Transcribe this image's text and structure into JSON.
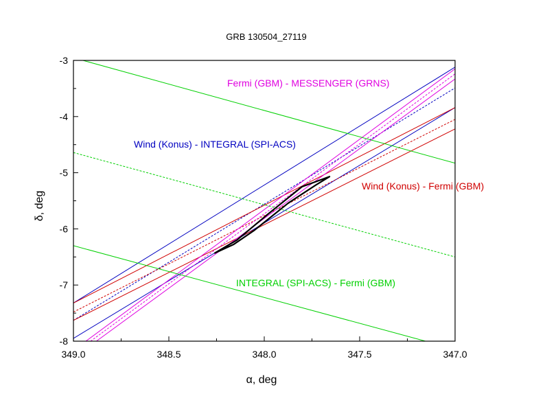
{
  "chart_data": {
    "type": "line",
    "title": "GRB 130504_27119",
    "xlabel": "α, deg",
    "ylabel": "δ, deg",
    "xlim": [
      349.0,
      347.0
    ],
    "ylim": [
      -8,
      -3
    ],
    "x_reversed": true,
    "grid": false,
    "xticks": [
      349.0,
      348.5,
      348.0,
      347.5,
      347.0
    ],
    "xtick_labels": [
      "349.0",
      "348.5",
      "348.0",
      "347.5",
      "347.0"
    ],
    "yticks": [
      -3,
      -4,
      -5,
      -6,
      -7,
      -8
    ],
    "ytick_labels": [
      "-3",
      "-4",
      "-5",
      "-6",
      "-7",
      "-8"
    ],
    "colors": {
      "blue": "#0000c0",
      "red": "#d00000",
      "magenta": "#e000e0",
      "green": "#00d000",
      "black": "#000000"
    },
    "series": [
      {
        "name": "Wind (Konus) - INTEGRAL (SPI-ACS) upper",
        "color": "blue",
        "style": "solid",
        "x": [
          349.0,
          347.0
        ],
        "y": [
          -7.32,
          -3.12
        ]
      },
      {
        "name": "Wind (Konus) - INTEGRAL (SPI-ACS) center",
        "color": "blue",
        "style": "dashed",
        "x": [
          349.0,
          347.0
        ],
        "y": [
          -7.63,
          -3.49
        ]
      },
      {
        "name": "Wind (Konus) - INTEGRAL (SPI-ACS) lower",
        "color": "blue",
        "style": "solid",
        "x": [
          349.0,
          347.0
        ],
        "y": [
          -7.95,
          -3.84
        ]
      },
      {
        "name": "Wind (Konus) - Fermi (GBM) upper",
        "color": "red",
        "style": "solid",
        "x": [
          349.0,
          347.0
        ],
        "y": [
          -7.32,
          -3.84
        ]
      },
      {
        "name": "Wind (Konus) - Fermi (GBM) center",
        "color": "red",
        "style": "dashed",
        "x": [
          349.0,
          347.0
        ],
        "y": [
          -7.48,
          -4.05
        ]
      },
      {
        "name": "Wind (Konus) - Fermi (GBM) lower",
        "color": "red",
        "style": "solid",
        "x": [
          349.0,
          347.0
        ],
        "y": [
          -7.63,
          -4.22
        ]
      },
      {
        "name": "Fermi (GBM) - MESSENGER (GRNS) upper",
        "color": "magenta",
        "style": "solid",
        "x": [
          348.935,
          347.0
        ],
        "y": [
          -8.0,
          -3.15
        ]
      },
      {
        "name": "Fermi (GBM) - MESSENGER (GRNS) center",
        "color": "magenta",
        "style": "dashed",
        "x": [
          348.91,
          347.0
        ],
        "y": [
          -8.0,
          -3.24
        ]
      },
      {
        "name": "Fermi (GBM) - MESSENGER (GRNS) lower",
        "color": "magenta",
        "style": "solid",
        "x": [
          348.88,
          347.0
        ],
        "y": [
          -8.0,
          -3.33
        ]
      },
      {
        "name": "INTEGRAL (SPI-ACS) - Fermi (GBM) upper",
        "color": "green",
        "style": "solid",
        "x": [
          348.95,
          347.0
        ],
        "y": [
          -3.0,
          -4.83
        ]
      },
      {
        "name": "INTEGRAL (SPI-ACS) - Fermi (GBM) center",
        "color": "green",
        "style": "dashed",
        "x": [
          349.0,
          347.0
        ],
        "y": [
          -4.64,
          -6.5
        ]
      },
      {
        "name": "INTEGRAL (SPI-ACS) - Fermi (GBM) lower",
        "color": "green",
        "style": "solid",
        "x": [
          349.0,
          347.155
        ],
        "y": [
          -6.3,
          -8.0
        ]
      },
      {
        "name": "Localization contour",
        "color": "black",
        "style": "solid-thick",
        "closed": true,
        "x": [
          348.259,
          348.144,
          347.971,
          347.802,
          347.658,
          347.73,
          347.874,
          348.054,
          348.162
        ],
        "y": [
          -6.43,
          -6.2,
          -5.71,
          -5.25,
          -5.07,
          -5.22,
          -5.54,
          -6.03,
          -6.28
        ]
      }
    ],
    "annotations": [
      {
        "text": "Fermi (GBM) - MESSENGER (GRNS)",
        "color": "magenta"
      },
      {
        "text": "Wind (Konus) - INTEGRAL (SPI-ACS)",
        "color": "blue"
      },
      {
        "text": "Wind (Konus) - Fermi (GBM)",
        "color": "red"
      },
      {
        "text": "INTEGRAL (SPI-ACS) - Fermi (GBM)",
        "color": "green"
      }
    ]
  }
}
